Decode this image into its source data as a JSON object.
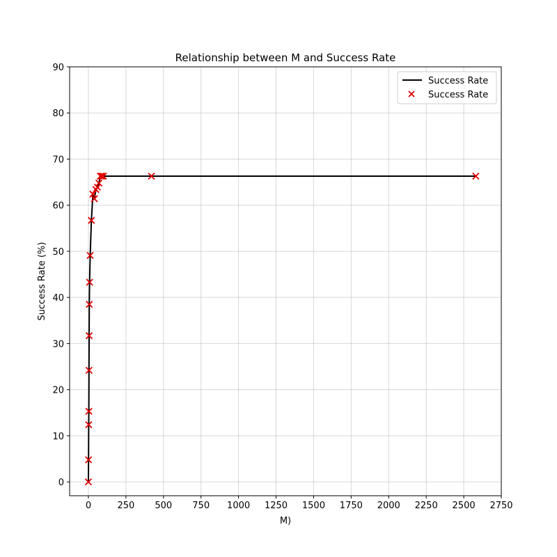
{
  "chart_data": {
    "type": "line",
    "title": "Relationship between M and Success Rate",
    "xlabel": "M)",
    "ylabel": "Success Rate (%)",
    "xlim": [
      -125,
      2750
    ],
    "ylim": [
      -3,
      90
    ],
    "xticks": [
      0,
      250,
      500,
      750,
      1000,
      1250,
      1500,
      1750,
      2000,
      2250,
      2500,
      2750
    ],
    "yticks": [
      0,
      10,
      20,
      30,
      40,
      50,
      60,
      70,
      80,
      90
    ],
    "grid": true,
    "legend_position": "top-right",
    "series": [
      {
        "name": "Success Rate",
        "kind": "line",
        "color": "#000000",
        "x": [
          0,
          1,
          2,
          3,
          4,
          5,
          6,
          8,
          12,
          20,
          30,
          40,
          50,
          60,
          70,
          80,
          90,
          100,
          420,
          2580
        ],
        "y": [
          0,
          4.8,
          12.4,
          15.3,
          24.2,
          31.7,
          38.5,
          43.3,
          49.1,
          56.7,
          62.4,
          61.4,
          63.4,
          63.9,
          64.8,
          66.3,
          66.3,
          66.3,
          66.3,
          66.3
        ]
      },
      {
        "name": "Success Rate",
        "kind": "scatter",
        "marker": "x",
        "color": "#e00000",
        "x": [
          0,
          1,
          2,
          3,
          4,
          5,
          6,
          8,
          12,
          20,
          30,
          40,
          50,
          60,
          70,
          80,
          90,
          100,
          420,
          2580
        ],
        "y": [
          0,
          4.8,
          12.4,
          15.3,
          24.2,
          31.7,
          38.5,
          43.3,
          49.1,
          56.7,
          62.4,
          61.4,
          63.4,
          63.9,
          64.8,
          66.3,
          66.3,
          66.3,
          66.3,
          66.3
        ]
      }
    ]
  }
}
